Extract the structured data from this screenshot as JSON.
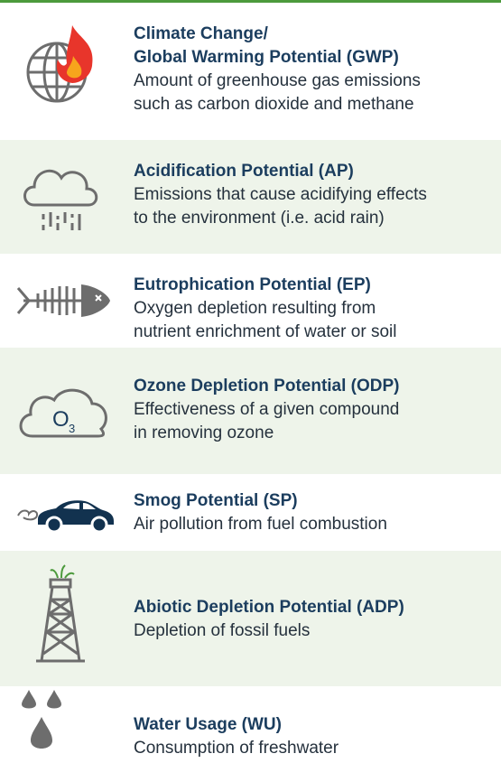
{
  "rows": [
    {
      "title_lines": [
        "Climate Change/",
        "Global Warming Potential (GWP)"
      ],
      "description_lines": [
        "Amount of greenhouse gas emissions",
        "such as carbon dioxide and methane"
      ]
    },
    {
      "title_lines": [
        "Acidification Potential (AP)"
      ],
      "description_lines": [
        "Emissions that cause acidifying effects",
        "to the environment (i.e. acid rain)"
      ]
    },
    {
      "title_lines": [
        "Eutrophication Potential (EP)"
      ],
      "description_lines": [
        "Oxygen depletion resulting from",
        "nutrient enrichment of water or soil"
      ]
    },
    {
      "title_lines": [
        "Ozone Depletion Potential (ODP)"
      ],
      "description_lines": [
        "Effectiveness of a given compound",
        "in removing ozone"
      ],
      "icon_text": {
        "main": "O",
        "sub": "3"
      }
    },
    {
      "title_lines": [
        "Smog Potential (SP)"
      ],
      "description_lines": [
        "Air pollution from fuel combustion"
      ]
    },
    {
      "title_lines": [
        "Abiotic Depletion Potential (ADP)"
      ],
      "description_lines": [
        "Depletion of fossil fuels"
      ]
    },
    {
      "title_lines": [
        "Water Usage (WU)"
      ],
      "description_lines": [
        "Consumption of freshwater"
      ]
    }
  ]
}
